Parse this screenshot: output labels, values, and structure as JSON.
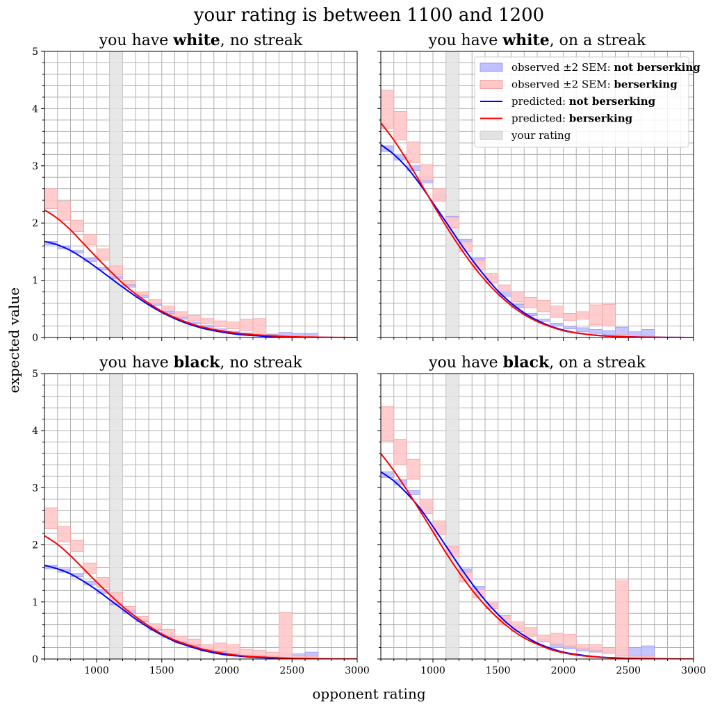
{
  "title": "your rating is between 1100 and 1200",
  "xlabel": "opponent rating",
  "ylabel": "expected value",
  "legend": {
    "position": "upper-right of top-right panel",
    "entries": [
      {
        "prefix": "observed ±2 SEM: ",
        "bold": "not berserking",
        "kind": "patch",
        "fill": "#bfc0ff",
        "stroke": "#9b9bf5"
      },
      {
        "prefix": "observed ±2 SEM: ",
        "bold": "berserking",
        "kind": "patch",
        "fill": "#ffc8c8",
        "stroke": "#f4a3a3"
      },
      {
        "prefix": "predicted: ",
        "bold": "not berserking",
        "kind": "line",
        "color": "#0000ff"
      },
      {
        "prefix": "predicted: ",
        "bold": "berserking",
        "kind": "line",
        "color": "#ff0000"
      },
      {
        "prefix": "your rating",
        "bold": "",
        "kind": "patch",
        "fill": "#e3e3e3",
        "stroke": "#c8c8c8"
      }
    ]
  },
  "colors": {
    "not_berserking": "#0000ff",
    "berserking": "#ff0000",
    "grid": "#b0b0b0",
    "your_rating": "#e3e3e3"
  },
  "chart_data": [
    {
      "type": "step-band+line",
      "title_prefix": "you have ",
      "title_bold": "white",
      "title_suffix": ", no streak",
      "xlim": [
        600,
        3000
      ],
      "ylim": [
        0,
        5
      ],
      "xticks": [
        "1000",
        "1500",
        "2000",
        "2500",
        "3000"
      ],
      "yticks": [
        "0",
        "1",
        "2",
        "3",
        "4",
        "5"
      ],
      "your_rating": [
        1100,
        1200
      ],
      "bins": [
        600,
        700,
        800,
        900,
        1000,
        1100,
        1200,
        1300,
        1400,
        1500,
        1600,
        1700,
        1800,
        1900,
        2000,
        2100,
        2200,
        2300,
        2400,
        2500,
        2600,
        2700
      ],
      "observed_not_berserking": {
        "low": [
          1.62,
          1.55,
          1.48,
          1.33,
          1.18,
          1.03,
          0.88,
          0.7,
          0.56,
          0.42,
          0.32,
          0.24,
          0.18,
          0.13,
          0.09,
          0.06,
          0.05,
          0.04,
          0.02,
          0.01,
          0.02
        ],
        "high": [
          1.68,
          1.6,
          1.52,
          1.38,
          1.22,
          1.07,
          0.92,
          0.74,
          0.6,
          0.46,
          0.35,
          0.27,
          0.21,
          0.15,
          0.11,
          0.08,
          0.07,
          0.06,
          0.09,
          0.07,
          0.07
        ]
      },
      "observed_berserking": {
        "low": [
          2.25,
          2.05,
          1.85,
          1.62,
          1.35,
          1.1,
          0.93,
          0.74,
          0.6,
          0.48,
          0.37,
          0.3,
          0.24,
          0.19,
          0.15,
          0.12,
          0.03,
          0.0,
          0.0,
          0.0,
          0.0
        ],
        "high": [
          2.6,
          2.38,
          2.05,
          1.8,
          1.55,
          1.25,
          0.99,
          0.8,
          0.66,
          0.55,
          0.45,
          0.38,
          0.33,
          0.29,
          0.27,
          0.32,
          0.33,
          0.05,
          0.04,
          0.03,
          0.02
        ]
      },
      "predicted_not_berserking": {
        "x": [
          600,
          700,
          800,
          900,
          1000,
          1100,
          1200,
          1300,
          1400,
          1500,
          1600,
          1700,
          1800,
          1900,
          2000,
          2100,
          2200,
          2300,
          2400,
          2500,
          2600,
          2700,
          2800,
          2900,
          3000
        ],
        "y": [
          1.68,
          1.62,
          1.52,
          1.38,
          1.22,
          1.05,
          0.88,
          0.72,
          0.57,
          0.44,
          0.33,
          0.24,
          0.17,
          0.12,
          0.08,
          0.05,
          0.035,
          0.02,
          0.012,
          0.007,
          0.004,
          0.002,
          0.001,
          0.0,
          0.0
        ]
      },
      "predicted_berserking": {
        "x": [
          600,
          700,
          800,
          900,
          1000,
          1100,
          1200,
          1300,
          1400,
          1500,
          1600,
          1700,
          1800,
          1900,
          2000,
          2100,
          2200,
          2300,
          2400,
          2500,
          2600,
          2700,
          2800,
          2900,
          3000
        ],
        "y": [
          2.23,
          2.08,
          1.88,
          1.64,
          1.4,
          1.17,
          0.95,
          0.76,
          0.6,
          0.46,
          0.35,
          0.26,
          0.19,
          0.14,
          0.1,
          0.07,
          0.05,
          0.035,
          0.022,
          0.013,
          0.008,
          0.004,
          0.002,
          0.001,
          0.0
        ]
      }
    },
    {
      "type": "step-band+line",
      "title_prefix": "you have ",
      "title_bold": "white",
      "title_suffix": ", on a streak",
      "xlim": [
        600,
        3000
      ],
      "ylim": [
        0,
        5
      ],
      "xticks": [
        "1000",
        "1500",
        "2000",
        "2500",
        "3000"
      ],
      "yticks": [
        "0",
        "1",
        "2",
        "3",
        "4",
        "5"
      ],
      "your_rating": [
        1100,
        1200
      ],
      "bins": [
        600,
        700,
        800,
        900,
        1000,
        1100,
        1200,
        1300,
        1400,
        1500,
        1600,
        1700,
        1800,
        1900,
        2000,
        2100,
        2200,
        2300,
        2400,
        2500,
        2600,
        2700
      ],
      "observed_not_berserking": {
        "low": [
          3.25,
          3.1,
          2.92,
          2.7,
          2.42,
          2.05,
          1.65,
          1.3,
          0.98,
          0.72,
          0.52,
          0.38,
          0.28,
          0.2,
          0.15,
          0.1,
          0.07,
          0.05,
          0.03,
          0.02,
          0.01
        ],
        "high": [
          3.35,
          3.18,
          3.0,
          2.78,
          2.5,
          2.12,
          1.72,
          1.38,
          1.05,
          0.8,
          0.58,
          0.42,
          0.32,
          0.25,
          0.2,
          0.17,
          0.14,
          0.12,
          0.18,
          0.1,
          0.14
        ]
      },
      "observed_berserking": {
        "low": [
          3.65,
          3.45,
          3.05,
          2.75,
          2.38,
          1.92,
          1.5,
          1.18,
          0.95,
          0.8,
          0.62,
          0.52,
          0.45,
          0.35,
          0.3,
          0.32,
          0.22,
          0.2,
          0.0,
          0.0,
          0.0
        ],
        "high": [
          4.32,
          3.95,
          3.42,
          3.02,
          2.6,
          2.1,
          1.68,
          1.35,
          1.12,
          0.92,
          0.8,
          0.7,
          0.65,
          0.55,
          0.42,
          0.45,
          0.57,
          0.58,
          0.05,
          0.04,
          0.03
        ]
      },
      "predicted_not_berserking": {
        "x": [
          600,
          700,
          800,
          900,
          1000,
          1100,
          1200,
          1300,
          1400,
          1500,
          1600,
          1700,
          1800,
          1900,
          2000,
          2100,
          2200,
          2300,
          2400,
          2500,
          2600,
          2700,
          2800,
          2900,
          3000
        ],
        "y": [
          3.37,
          3.2,
          2.97,
          2.68,
          2.35,
          2.02,
          1.68,
          1.36,
          1.07,
          0.81,
          0.6,
          0.43,
          0.3,
          0.2,
          0.13,
          0.08,
          0.05,
          0.03,
          0.02,
          0.012,
          0.007,
          0.004,
          0.002,
          0.001,
          0.0
        ]
      },
      "predicted_berserking": {
        "x": [
          600,
          700,
          800,
          900,
          1000,
          1100,
          1200,
          1300,
          1400,
          1500,
          1600,
          1700,
          1800,
          1900,
          2000,
          2100,
          2200,
          2300,
          2400,
          2500,
          2600,
          2700,
          2800,
          2900,
          3000
        ],
        "y": [
          3.75,
          3.45,
          3.1,
          2.72,
          2.33,
          1.95,
          1.6,
          1.28,
          1.0,
          0.76,
          0.56,
          0.4,
          0.28,
          0.19,
          0.12,
          0.08,
          0.05,
          0.03,
          0.018,
          0.01,
          0.006,
          0.003,
          0.001,
          0.0,
          0.0
        ]
      }
    },
    {
      "type": "step-band+line",
      "title_prefix": "you have ",
      "title_bold": "black",
      "title_suffix": ", no streak",
      "xlim": [
        600,
        3000
      ],
      "ylim": [
        0,
        5
      ],
      "xticks": [
        "1000",
        "1500",
        "2000",
        "2500",
        "3000"
      ],
      "yticks": [
        "0",
        "1",
        "2",
        "3",
        "4",
        "5"
      ],
      "your_rating": [
        1100,
        1200
      ],
      "bins": [
        600,
        700,
        800,
        900,
        1000,
        1100,
        1200,
        1300,
        1400,
        1500,
        1600,
        1700,
        1800,
        1900,
        2000,
        2100,
        2200,
        2300,
        2400,
        2500,
        2600,
        2700
      ],
      "observed_not_berserking": {
        "low": [
          1.58,
          1.52,
          1.44,
          1.3,
          1.15,
          0.95,
          0.8,
          0.65,
          0.5,
          0.38,
          0.28,
          0.2,
          0.14,
          0.1,
          0.07,
          0.05,
          0.04,
          0.03,
          0.02,
          0.02,
          0.01
        ],
        "high": [
          1.64,
          1.58,
          1.5,
          1.36,
          1.22,
          1.02,
          0.86,
          0.7,
          0.55,
          0.43,
          0.32,
          0.24,
          0.18,
          0.13,
          0.1,
          0.08,
          0.07,
          0.07,
          0.1,
          0.09,
          0.12
        ]
      },
      "observed_berserking": {
        "low": [
          2.28,
          2.05,
          1.88,
          1.5,
          1.25,
          0.98,
          0.85,
          0.66,
          0.52,
          0.4,
          0.3,
          0.25,
          0.17,
          0.14,
          0.12,
          0.06,
          0.06,
          0.04,
          0.0,
          0.0,
          0.0
        ],
        "high": [
          2.65,
          2.32,
          2.08,
          1.68,
          1.43,
          1.16,
          0.92,
          0.75,
          0.62,
          0.52,
          0.4,
          0.35,
          0.25,
          0.28,
          0.25,
          0.17,
          0.15,
          0.12,
          0.82,
          0.06,
          0.05
        ]
      },
      "predicted_not_berserking": {
        "x": [
          600,
          700,
          800,
          900,
          1000,
          1100,
          1200,
          1300,
          1400,
          1500,
          1600,
          1700,
          1800,
          1900,
          2000,
          2100,
          2200,
          2300,
          2400,
          2500,
          2600,
          2700,
          2800,
          2900,
          3000
        ],
        "y": [
          1.64,
          1.58,
          1.49,
          1.36,
          1.21,
          1.04,
          0.87,
          0.7,
          0.55,
          0.42,
          0.31,
          0.23,
          0.16,
          0.11,
          0.07,
          0.05,
          0.03,
          0.02,
          0.012,
          0.007,
          0.004,
          0.002,
          0.001,
          0.0,
          0.0
        ]
      },
      "predicted_berserking": {
        "x": [
          600,
          700,
          800,
          900,
          1000,
          1100,
          1200,
          1300,
          1400,
          1500,
          1600,
          1700,
          1800,
          1900,
          2000,
          2100,
          2200,
          2300,
          2400,
          2500,
          2600,
          2700,
          2800,
          2900,
          3000
        ],
        "y": [
          2.16,
          2.01,
          1.81,
          1.58,
          1.35,
          1.13,
          0.92,
          0.74,
          0.58,
          0.44,
          0.33,
          0.25,
          0.18,
          0.13,
          0.09,
          0.06,
          0.04,
          0.03,
          0.02,
          0.012,
          0.007,
          0.004,
          0.002,
          0.001,
          0.0
        ]
      }
    },
    {
      "type": "step-band+line",
      "title_prefix": "you have ",
      "title_bold": "black",
      "title_suffix": ", on a streak",
      "xlim": [
        600,
        3000
      ],
      "ylim": [
        0,
        5
      ],
      "xticks": [
        "1000",
        "1500",
        "2000",
        "2500",
        "3000"
      ],
      "yticks": [
        "0",
        "1",
        "2",
        "3",
        "4",
        "5"
      ],
      "your_rating": [
        1100,
        1200
      ],
      "bins": [
        600,
        700,
        800,
        900,
        1000,
        1100,
        1200,
        1300,
        1400,
        1500,
        1600,
        1700,
        1800,
        1900,
        2000,
        2100,
        2200,
        2300,
        2400,
        2500,
        2600,
        2700
      ],
      "observed_not_berserking": {
        "low": [
          3.18,
          3.05,
          2.88,
          2.6,
          2.28,
          1.88,
          1.52,
          1.2,
          0.92,
          0.7,
          0.52,
          0.4,
          0.3,
          0.22,
          0.18,
          0.14,
          0.12,
          0.1,
          0.05,
          0.04,
          0.02
        ],
        "high": [
          3.28,
          3.14,
          2.95,
          2.66,
          2.34,
          1.95,
          1.58,
          1.27,
          0.98,
          0.76,
          0.57,
          0.45,
          0.35,
          0.28,
          0.24,
          0.2,
          0.18,
          0.17,
          0.17,
          0.2,
          0.23
        ]
      },
      "observed_berserking": {
        "low": [
          3.82,
          3.4,
          3.15,
          2.55,
          2.18,
          1.8,
          1.35,
          1.08,
          0.88,
          0.6,
          0.48,
          0.4,
          0.3,
          0.26,
          0.22,
          0.18,
          0.15,
          0.1,
          0.05,
          0.0,
          0.0
        ],
        "high": [
          4.42,
          3.85,
          3.5,
          2.8,
          2.42,
          1.98,
          1.52,
          1.22,
          1.0,
          0.76,
          0.65,
          0.55,
          0.42,
          0.45,
          0.43,
          0.25,
          0.25,
          0.2,
          1.37,
          0.06,
          0.05
        ]
      },
      "predicted_not_berserking": {
        "x": [
          600,
          700,
          800,
          900,
          1000,
          1100,
          1200,
          1300,
          1400,
          1500,
          1600,
          1700,
          1800,
          1900,
          2000,
          2100,
          2200,
          2300,
          2400,
          2500,
          2600,
          2700,
          2800,
          2900,
          3000
        ],
        "y": [
          3.28,
          3.12,
          2.9,
          2.64,
          2.32,
          1.98,
          1.64,
          1.32,
          1.03,
          0.78,
          0.57,
          0.41,
          0.28,
          0.19,
          0.12,
          0.08,
          0.05,
          0.03,
          0.02,
          0.012,
          0.007,
          0.004,
          0.002,
          0.001,
          0.0
        ]
      },
      "predicted_berserking": {
        "x": [
          600,
          700,
          800,
          900,
          1000,
          1100,
          1200,
          1300,
          1400,
          1500,
          1600,
          1700,
          1800,
          1900,
          2000,
          2100,
          2200,
          2300,
          2400,
          2500,
          2600,
          2700,
          2800,
          2900,
          3000
        ],
        "y": [
          3.6,
          3.3,
          2.96,
          2.6,
          2.23,
          1.86,
          1.52,
          1.21,
          0.94,
          0.71,
          0.52,
          0.37,
          0.26,
          0.17,
          0.11,
          0.07,
          0.045,
          0.028,
          0.016,
          0.009,
          0.005,
          0.003,
          0.001,
          0.0,
          0.0
        ]
      }
    }
  ]
}
